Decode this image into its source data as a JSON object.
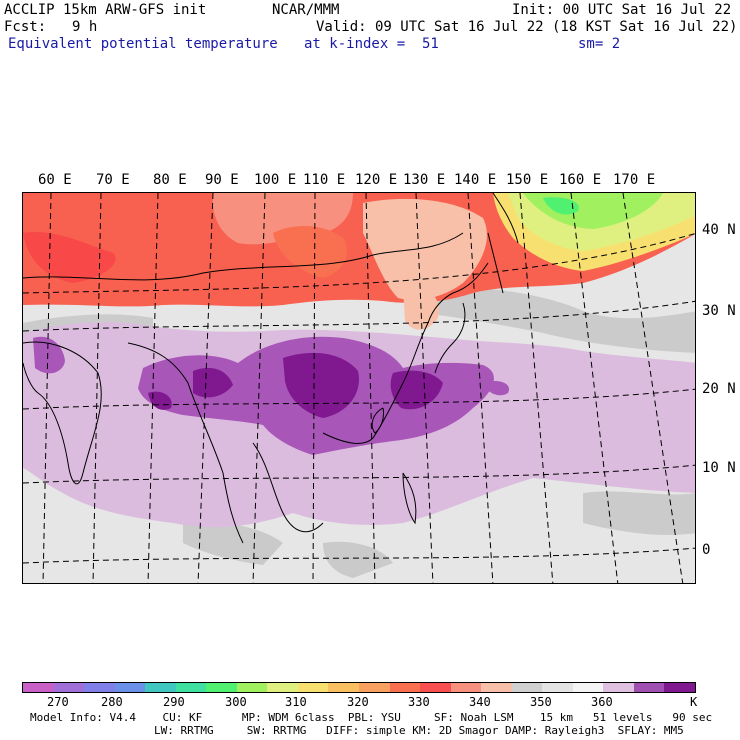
{
  "header": {
    "model": "ACCLIP 15km ARW-GFS init",
    "org": "NCAR/MMM",
    "init": "Init: 00 UTC Sat 16 Jul 22",
    "fcst_label": "Fcst:",
    "fcst_value": "9 h",
    "valid": "Valid: 09 UTC Sat 16 Jul 22 (18 KST Sat 16 Jul 22)",
    "field": "Equivalent potential temperature",
    "level": "at k-index =  51",
    "smooth": "sm= 2"
  },
  "map": {
    "lon_labels": [
      "60 E",
      "70 E",
      "80 E",
      "90 E",
      "100 E",
      "110 E",
      "120 E",
      "130 E",
      "140 E",
      "150 E",
      "160 E",
      "170 E"
    ],
    "lat_labels": [
      "40 N",
      "30 N",
      "20 N",
      "10 N",
      "0"
    ]
  },
  "colorbar": {
    "colors": [
      "#c860c8",
      "#a070d8",
      "#8080e8",
      "#6a90e8",
      "#40c8c0",
      "#40e0a0",
      "#50f070",
      "#a0f060",
      "#e0f080",
      "#f8e070",
      "#f8c060",
      "#f8a060",
      "#f87050",
      "#f85050",
      "#f89080",
      "#f8c0a8",
      "#d0d0d0",
      "#e4e4e4",
      "#f4f4f4",
      "#e0c0e0",
      "#a050b0",
      "#801890"
    ],
    "ticks": [
      "270",
      "280",
      "290",
      "300",
      "310",
      "320",
      "330",
      "340",
      "350",
      "360"
    ],
    "unit": "K"
  },
  "footer": {
    "line1": "Model Info: V4.4    CU: KF      MP: WDM 6class  PBL: YSU     SF: Noah LSM    15 km   51 levels   90 sec",
    "line2": "LW: RRTMG     SW: RRTMG   DIFF: simple KM: 2D Smagor DAMP: Rayleigh3  SFLAY: MM5"
  }
}
